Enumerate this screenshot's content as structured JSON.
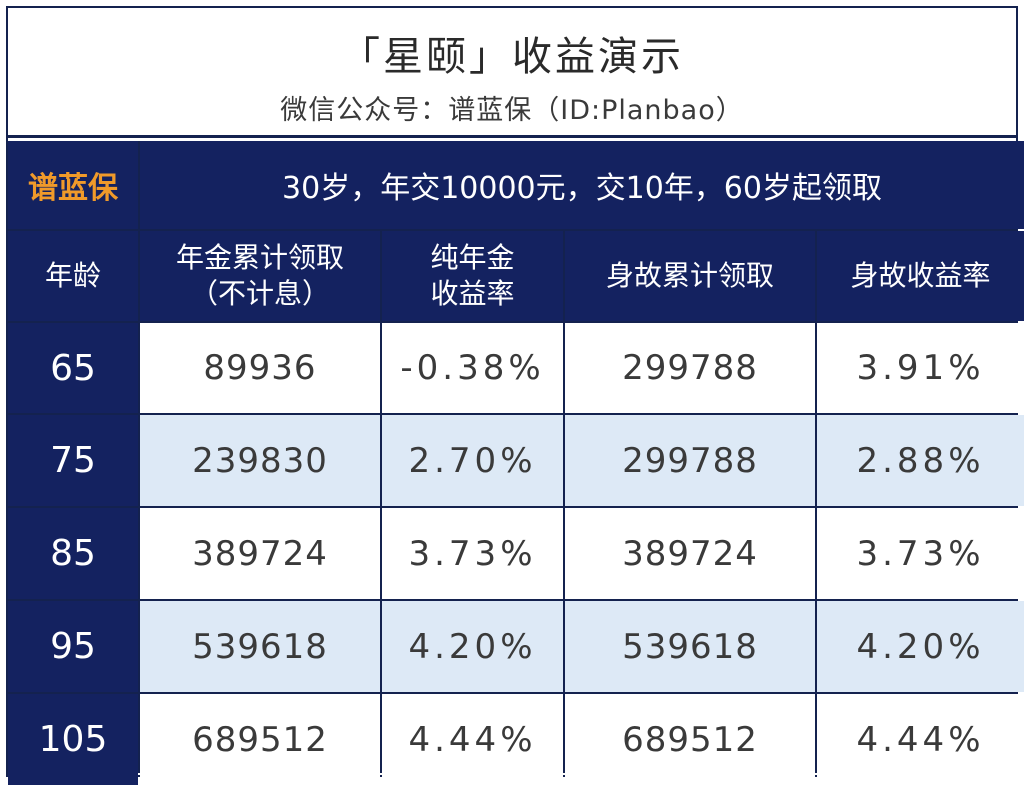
{
  "header": {
    "title": "「星颐」收益演示",
    "subtitle": "微信公众号：谱蓝保（ID:Planbao）"
  },
  "table": {
    "brand": "谱蓝保",
    "condition": "30岁，年交10000元，交10年，60岁起领取",
    "columns": [
      {
        "line1": "年龄",
        "line2": ""
      },
      {
        "line1": "年金累计领取",
        "line2": "（不计息）"
      },
      {
        "line1": "纯年金",
        "line2": "收益率"
      },
      {
        "line1": "身故累计领取",
        "line2": ""
      },
      {
        "line1": "身故收益率",
        "line2": ""
      }
    ],
    "rows": [
      {
        "age": "65",
        "annuity_total": "89936",
        "annuity_yield": "-0.38%",
        "death_total": "299788",
        "death_yield": "3.91%"
      },
      {
        "age": "75",
        "annuity_total": "239830",
        "annuity_yield": "2.70%",
        "death_total": "299788",
        "death_yield": "2.88%"
      },
      {
        "age": "85",
        "annuity_total": "389724",
        "annuity_yield": "3.73%",
        "death_total": "389724",
        "death_yield": "3.73%"
      },
      {
        "age": "95",
        "annuity_total": "539618",
        "annuity_yield": "4.20%",
        "death_total": "539618",
        "death_yield": "4.20%"
      },
      {
        "age": "105",
        "annuity_total": "689512",
        "annuity_yield": "4.44%",
        "death_total": "689512",
        "death_yield": "4.44%"
      }
    ]
  },
  "colors": {
    "header_navy": "#142260",
    "brand_orange": "#f09a2a",
    "row_alt_blue": "#dde9f6"
  }
}
